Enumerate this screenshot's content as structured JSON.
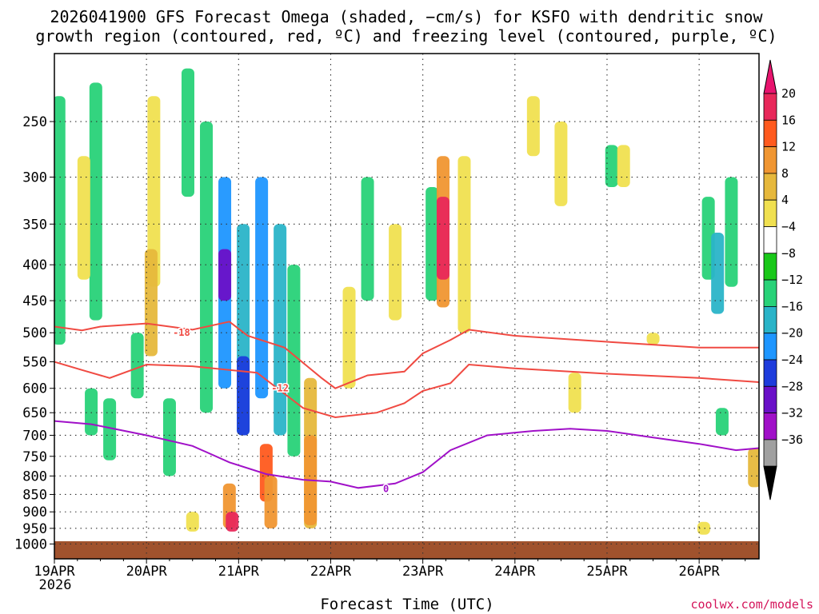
{
  "chart_data": {
    "type": "heatmap",
    "title_lines": [
      "2026041900 GFS Forecast Omega (shaded, −cm/s) for KSFO with dendritic snow",
      "growth region (contoured, red, ºC) and freezing level (contoured, purple, ºC)"
    ],
    "xlabel": "Forecast Time (UTC)",
    "x_ticks": [
      "19APR",
      "20APR",
      "21APR",
      "22APR",
      "23APR",
      "24APR",
      "25APR",
      "26APR"
    ],
    "x_subtick": "2026",
    "x_range_days": [
      0,
      7.65
    ],
    "y_axis": {
      "scale": "log-pressure",
      "unit": "hPa",
      "range": [
        1050,
        200
      ],
      "ticks": [
        250,
        300,
        350,
        400,
        450,
        500,
        550,
        600,
        650,
        700,
        750,
        800,
        850,
        900,
        950,
        1000
      ]
    },
    "grid": "dotted",
    "colorbar": {
      "labels": [
        "20",
        "16",
        "12",
        "8",
        "4",
        "−4",
        "−8",
        "−12",
        "−16",
        "−20",
        "−24",
        "−28",
        "−32",
        "−36"
      ],
      "colors": [
        "#e8285a",
        "#ff5a1e",
        "#f09632",
        "#e6b83c",
        "#f0e050",
        "#ffffff",
        "#19c819",
        "#28d278",
        "#2ab4c8",
        "#1e96ff",
        "#1e3cdc",
        "#6a10c8",
        "#a010c8",
        "#a0a0a0",
        "#000000"
      ],
      "top_arrow_color": "#e8146e",
      "bottom_arrow_color": "#000000"
    },
    "contours": [
      {
        "label": "-18",
        "color": "#f04a42",
        "points": [
          [
            0,
            490
          ],
          [
            0.3,
            496
          ],
          [
            0.5,
            490
          ],
          [
            1,
            485
          ],
          [
            1.5,
            495
          ],
          [
            1.9,
            482
          ],
          [
            2.1,
            505
          ],
          [
            2.5,
            525
          ],
          [
            2.9,
            580
          ],
          [
            3.05,
            600
          ],
          [
            3.4,
            575
          ],
          [
            3.8,
            568
          ],
          [
            4.0,
            535
          ],
          [
            4.3,
            512
          ],
          [
            4.5,
            495
          ],
          [
            5.0,
            505
          ],
          [
            6.0,
            515
          ],
          [
            7.0,
            525
          ],
          [
            7.65,
            525
          ]
        ],
        "label_at": [
          1.38,
          500
        ]
      },
      {
        "label": "-12",
        "color": "#f04a42",
        "points": [
          [
            0,
            550
          ],
          [
            0.3,
            565
          ],
          [
            0.6,
            580
          ],
          [
            1.0,
            555
          ],
          [
            1.5,
            558
          ],
          [
            1.9,
            565
          ],
          [
            2.2,
            570
          ],
          [
            2.7,
            640
          ],
          [
            3.05,
            660
          ],
          [
            3.5,
            650
          ],
          [
            3.8,
            630
          ],
          [
            4.0,
            605
          ],
          [
            4.3,
            590
          ],
          [
            4.5,
            555
          ],
          [
            5.0,
            562
          ],
          [
            6.0,
            572
          ],
          [
            7.0,
            580
          ],
          [
            7.65,
            588
          ]
        ],
        "label_at": [
          2.45,
          600
        ]
      },
      {
        "label": "0",
        "color": "#a010c8",
        "points": [
          [
            0,
            668
          ],
          [
            0.4,
            675
          ],
          [
            1.0,
            700
          ],
          [
            1.5,
            725
          ],
          [
            1.9,
            765
          ],
          [
            2.3,
            795
          ],
          [
            2.7,
            810
          ],
          [
            3.0,
            815
          ],
          [
            3.3,
            832
          ],
          [
            3.7,
            820
          ],
          [
            4.0,
            790
          ],
          [
            4.3,
            735
          ],
          [
            4.7,
            700
          ],
          [
            5.2,
            690
          ],
          [
            5.6,
            685
          ],
          [
            6.0,
            690
          ],
          [
            6.5,
            705
          ],
          [
            7.0,
            720
          ],
          [
            7.4,
            735
          ],
          [
            7.65,
            730
          ]
        ],
        "label_at": [
          3.6,
          835
        ]
      }
    ],
    "omega_cells": [
      {
        "x": 0.05,
        "p1": 230,
        "p2": 520,
        "v": -8
      },
      {
        "x": 0.45,
        "p1": 220,
        "p2": 480,
        "v": -8
      },
      {
        "x": 0.32,
        "p1": 280,
        "p2": 420,
        "v": 4
      },
      {
        "x": 1.08,
        "p1": 230,
        "p2": 430,
        "v": 4
      },
      {
        "x": 1.05,
        "p1": 380,
        "p2": 540,
        "v": 8
      },
      {
        "x": 1.45,
        "p1": 210,
        "p2": 320,
        "v": -8
      },
      {
        "x": 0.9,
        "p1": 500,
        "p2": 620,
        "v": -8
      },
      {
        "x": 1.25,
        "p1": 620,
        "p2": 800,
        "v": -8
      },
      {
        "x": 1.65,
        "p1": 250,
        "p2": 650,
        "v": -8
      },
      {
        "x": 1.85,
        "p1": 300,
        "p2": 600,
        "v": -16
      },
      {
        "x": 1.85,
        "p1": 380,
        "p2": 450,
        "v": -24
      },
      {
        "x": 2.05,
        "p1": 350,
        "p2": 700,
        "v": -12
      },
      {
        "x": 2.25,
        "p1": 300,
        "p2": 620,
        "v": -16
      },
      {
        "x": 2.45,
        "p1": 350,
        "p2": 700,
        "v": -12
      },
      {
        "x": 2.6,
        "p1": 400,
        "p2": 750,
        "v": -8
      },
      {
        "x": 2.05,
        "p1": 540,
        "p2": 700,
        "v": -20
      },
      {
        "x": 1.9,
        "p1": 820,
        "p2": 950,
        "v": 12
      },
      {
        "x": 1.93,
        "p1": 900,
        "p2": 960,
        "v": 20
      },
      {
        "x": 2.3,
        "p1": 720,
        "p2": 870,
        "v": 16
      },
      {
        "x": 2.35,
        "p1": 800,
        "p2": 950,
        "v": 12
      },
      {
        "x": 2.78,
        "p1": 580,
        "p2": 950,
        "v": 8
      },
      {
        "x": 2.78,
        "p1": 700,
        "p2": 940,
        "v": 12
      },
      {
        "x": 1.5,
        "p1": 900,
        "p2": 960,
        "v": 4
      },
      {
        "x": 3.2,
        "p1": 430,
        "p2": 600,
        "v": 4
      },
      {
        "x": 3.4,
        "p1": 300,
        "p2": 450,
        "v": -8
      },
      {
        "x": 3.7,
        "p1": 350,
        "p2": 480,
        "v": 4
      },
      {
        "x": 4.1,
        "p1": 310,
        "p2": 450,
        "v": -8
      },
      {
        "x": 4.22,
        "p1": 280,
        "p2": 460,
        "v": 12
      },
      {
        "x": 4.22,
        "p1": 320,
        "p2": 420,
        "v": 20
      },
      {
        "x": 4.45,
        "p1": 280,
        "p2": 500,
        "v": 4
      },
      {
        "x": 5.2,
        "p1": 230,
        "p2": 280,
        "v": 4
      },
      {
        "x": 5.5,
        "p1": 250,
        "p2": 330,
        "v": 4
      },
      {
        "x": 6.05,
        "p1": 270,
        "p2": 310,
        "v": -8
      },
      {
        "x": 6.18,
        "p1": 270,
        "p2": 310,
        "v": 4
      },
      {
        "x": 7.1,
        "p1": 320,
        "p2": 420,
        "v": -8
      },
      {
        "x": 7.2,
        "p1": 360,
        "p2": 470,
        "v": -12
      },
      {
        "x": 7.35,
        "p1": 300,
        "p2": 430,
        "v": -8
      },
      {
        "x": 7.25,
        "p1": 640,
        "p2": 700,
        "v": -8
      },
      {
        "x": 7.6,
        "p1": 730,
        "p2": 830,
        "v": 8
      },
      {
        "x": 7.05,
        "p1": 930,
        "p2": 970,
        "v": 4
      },
      {
        "x": 5.65,
        "p1": 570,
        "p2": 650,
        "v": 4
      },
      {
        "x": 6.5,
        "p1": 500,
        "p2": 520,
        "v": 4
      },
      {
        "x": 0.4,
        "p1": 600,
        "p2": 700,
        "v": -8
      },
      {
        "x": 0.6,
        "p1": 620,
        "p2": 760,
        "v": -8
      }
    ]
  },
  "credit": "coolwx.com/models"
}
